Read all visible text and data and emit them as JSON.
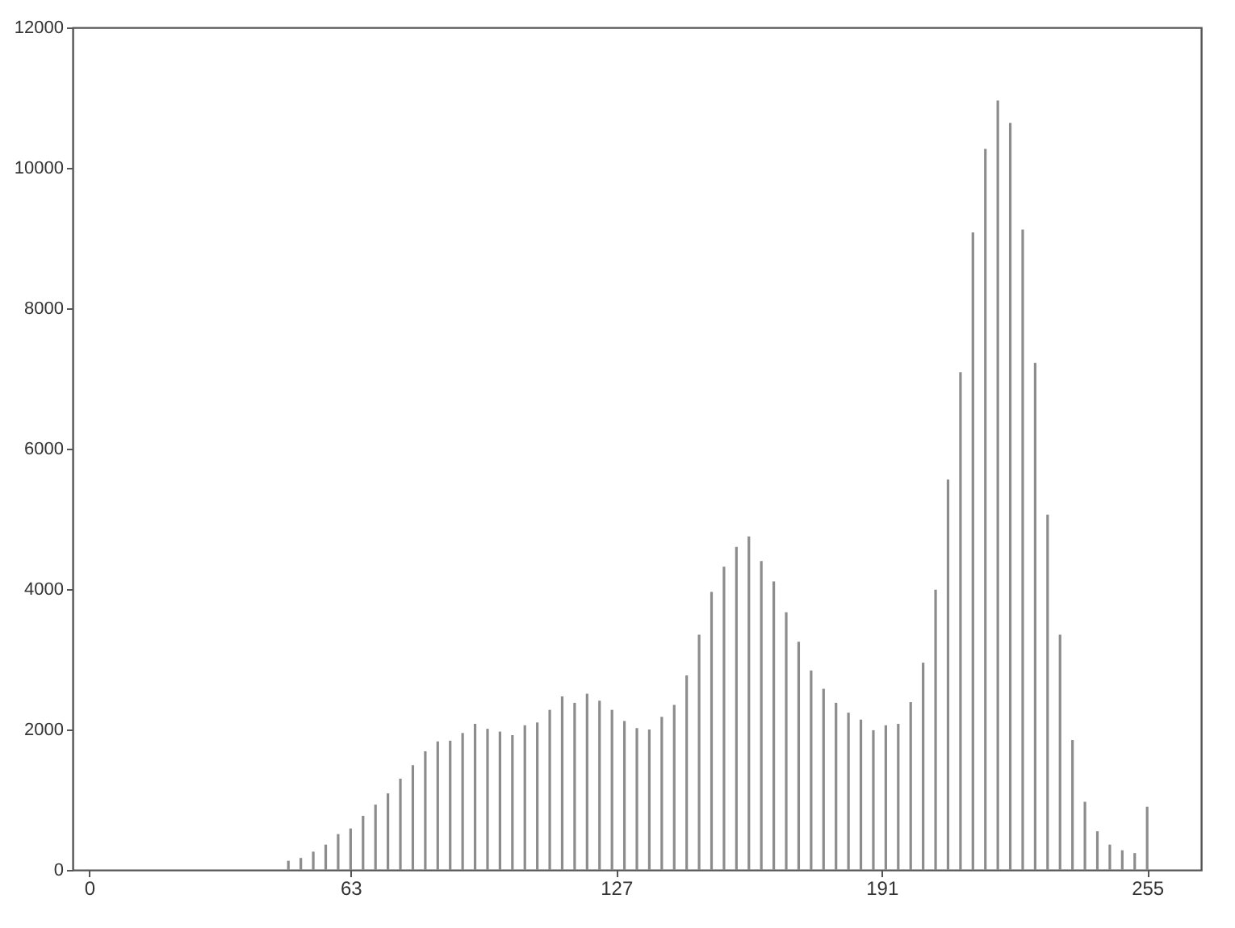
{
  "chart_data": {
    "type": "bar",
    "x": [
      48,
      51,
      54,
      57,
      60,
      63,
      66,
      69,
      72,
      75,
      78,
      81,
      84,
      87,
      90,
      93,
      96,
      99,
      102,
      105,
      108,
      111,
      114,
      117,
      120,
      123,
      126,
      129,
      132,
      135,
      138,
      141,
      144,
      147,
      150,
      153,
      156,
      159,
      162,
      165,
      168,
      171,
      174,
      177,
      180,
      183,
      186,
      189,
      192,
      195,
      198,
      201,
      204,
      207,
      210,
      213,
      216,
      219,
      222,
      225,
      228,
      231,
      234,
      237,
      240,
      243,
      246,
      249,
      252,
      255
    ],
    "values": [
      130,
      170,
      260,
      360,
      510,
      590,
      770,
      930,
      1090,
      1300,
      1490,
      1690,
      1830,
      1840,
      1950,
      2080,
      2010,
      1970,
      1920,
      2060,
      2100,
      2280,
      2470,
      2380,
      2510,
      2410,
      2280,
      2120,
      2020,
      2000,
      2180,
      2350,
      2770,
      3350,
      3960,
      4320,
      4600,
      4750,
      4400,
      4110,
      3670,
      3250,
      2840,
      2580,
      2380,
      2240,
      2140,
      1990,
      2060,
      2080,
      2390,
      2950,
      3990,
      5560,
      7090,
      9080,
      10270,
      10960,
      10640,
      9120,
      7220,
      5060,
      3350,
      1850,
      970,
      550,
      360,
      280,
      240,
      900
    ],
    "color": "#8c8c8c",
    "xlim": [
      -4,
      268
    ],
    "xticks": [
      0,
      63,
      127,
      191,
      255
    ],
    "ylim": [
      0,
      12000
    ],
    "yticks": [
      0,
      2000,
      4000,
      6000,
      8000,
      10000,
      12000
    ],
    "grid": false
  }
}
